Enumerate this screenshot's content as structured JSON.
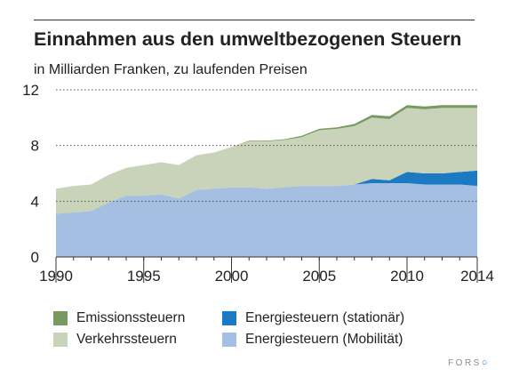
{
  "header": {
    "title": "Einnahmen aus den umweltbezogenen Steuern",
    "subtitle": "in Milliarden Franken, zu laufenden Preisen"
  },
  "footer": {
    "logo_text": "FORS"
  },
  "chart_data": {
    "type": "area",
    "stacked": true,
    "title": "Einnahmen aus den umweltbezogenen Steuern",
    "subtitle": "in Milliarden Franken, zu laufenden Preisen",
    "x": [
      1990,
      1991,
      1992,
      1993,
      1994,
      1995,
      1996,
      1997,
      1998,
      1999,
      2000,
      2001,
      2002,
      2003,
      2004,
      2005,
      2006,
      2007,
      2008,
      2009,
      2010,
      2011,
      2012,
      2013,
      2014
    ],
    "xlim": [
      1990,
      2014
    ],
    "xticks": [
      1990,
      1995,
      2000,
      2005,
      2010,
      2014
    ],
    "ylim": [
      0,
      12
    ],
    "yticks": [
      0,
      4,
      8,
      12
    ],
    "grid": "horizontal dotted",
    "legend_position": "bottom",
    "series": [
      {
        "name": "Energiesteuern (Mobilität)",
        "color": "#a5bfe3",
        "values": [
          3.1,
          3.2,
          3.3,
          3.9,
          4.4,
          4.4,
          4.5,
          4.2,
          4.8,
          4.9,
          5.0,
          5.0,
          4.9,
          5.0,
          5.1,
          5.1,
          5.1,
          5.2,
          5.3,
          5.3,
          5.3,
          5.2,
          5.2,
          5.2,
          5.1
        ]
      },
      {
        "name": "Energiesteuern (stationär)",
        "color": "#1c7ac2",
        "values": [
          0,
          0,
          0,
          0,
          0,
          0,
          0,
          0,
          0,
          0,
          0,
          0,
          0,
          0,
          0,
          0,
          0,
          0,
          0.3,
          0.2,
          0.8,
          0.8,
          0.8,
          0.9,
          1.1
        ]
      },
      {
        "name": "Verkehrssteuern",
        "color": "#c9d3b9",
        "values": [
          1.8,
          1.9,
          1.9,
          2.0,
          2.0,
          2.2,
          2.3,
          2.4,
          2.5,
          2.6,
          2.9,
          3.3,
          3.4,
          3.4,
          3.5,
          4.0,
          4.1,
          4.2,
          4.4,
          4.4,
          4.6,
          4.6,
          4.7,
          4.6,
          4.5
        ]
      },
      {
        "name": "Emissionssteuern",
        "color": "#769a5f",
        "values": [
          0,
          0,
          0,
          0,
          0,
          0,
          0,
          0,
          0,
          0,
          0,
          0.05,
          0.05,
          0.05,
          0.1,
          0.1,
          0.1,
          0.15,
          0.2,
          0.2,
          0.2,
          0.2,
          0.2,
          0.2,
          0.2
        ]
      }
    ]
  }
}
